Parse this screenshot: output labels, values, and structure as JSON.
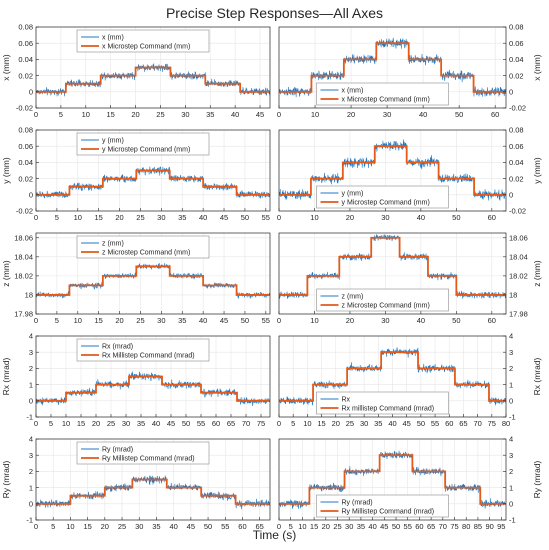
{
  "figure": {
    "title": "Precise Step Responses—All Axes",
    "xlabel": "Time (s)"
  },
  "colors": {
    "measured": "#1f78c1",
    "command": "#e35a1a",
    "grid": "#e6e6e6",
    "axis": "#262626"
  },
  "chart_data": [
    {
      "type": "line",
      "ylabel": "x (mm)",
      "ylabel_side": "left",
      "xlim": [
        0,
        47
      ],
      "ylim": [
        -0.02,
        0.08
      ],
      "xticks": [
        0,
        5,
        10,
        15,
        20,
        25,
        30,
        35,
        40,
        45
      ],
      "yticks": [
        -0.02,
        0,
        0.02,
        0.04,
        0.06,
        0.08
      ],
      "ytick_labels": [
        "-0.02",
        "0",
        "0.02",
        "0.04",
        "0.06",
        "0.08"
      ],
      "legend_position": "top-center",
      "grid": true,
      "noise": 0.004,
      "series": [
        {
          "name": "x (mm)",
          "role": "measured"
        },
        {
          "name": "x Microstep Command (mm)",
          "role": "command",
          "x": [
            0,
            6,
            6,
            13,
            13,
            20,
            20,
            27,
            27,
            34,
            34,
            41,
            41,
            47
          ],
          "y": [
            0,
            0,
            0.01,
            0.01,
            0.02,
            0.02,
            0.03,
            0.03,
            0.02,
            0.02,
            0.01,
            0.01,
            0,
            0
          ]
        }
      ]
    },
    {
      "type": "line",
      "ylabel": "x (mm)",
      "ylabel_side": "right",
      "xlim": [
        0,
        63
      ],
      "ylim": [
        -0.02,
        0.08
      ],
      "xticks": [
        0,
        10,
        20,
        30,
        40,
        50,
        60
      ],
      "yticks": [
        -0.02,
        0,
        0.02,
        0.04,
        0.06,
        0.08
      ],
      "ytick_labels": [
        "-0.02",
        "0",
        "0.02",
        "0.04",
        "0.06",
        "0.08"
      ],
      "legend_position": "bottom-center",
      "grid": true,
      "noise": 0.005,
      "series": [
        {
          "name": "x (mm)",
          "role": "measured"
        },
        {
          "name": "x Microstep Command (mm)",
          "role": "command",
          "x": [
            0,
            9,
            9,
            18,
            18,
            27,
            27,
            36,
            36,
            45,
            45,
            54,
            54,
            63
          ],
          "y": [
            0,
            0,
            0.02,
            0.02,
            0.04,
            0.04,
            0.06,
            0.06,
            0.04,
            0.04,
            0.02,
            0.02,
            0,
            0
          ]
        }
      ]
    },
    {
      "type": "line",
      "ylabel": "y (mm)",
      "ylabel_side": "left",
      "xlim": [
        0,
        56
      ],
      "ylim": [
        -0.02,
        0.08
      ],
      "xticks": [
        0,
        5,
        10,
        15,
        20,
        25,
        30,
        35,
        40,
        45,
        50,
        55
      ],
      "yticks": [
        -0.02,
        0,
        0.02,
        0.04,
        0.06,
        0.08
      ],
      "ytick_labels": [
        "-0.02",
        "0",
        "0.02",
        "0.04",
        "0.06",
        "0.08"
      ],
      "legend_position": "top-center",
      "grid": true,
      "noise": 0.004,
      "series": [
        {
          "name": "y (mm)",
          "role": "measured"
        },
        {
          "name": "y Microstep Command (mm)",
          "role": "command",
          "x": [
            0,
            8,
            8,
            16,
            16,
            24,
            24,
            32,
            32,
            40,
            40,
            48,
            48,
            56
          ],
          "y": [
            0,
            0,
            0.01,
            0.01,
            0.02,
            0.02,
            0.03,
            0.03,
            0.02,
            0.02,
            0.01,
            0.01,
            0,
            0
          ]
        }
      ]
    },
    {
      "type": "line",
      "ylabel": "y (mm)",
      "ylabel_side": "right",
      "xlim": [
        0,
        64
      ],
      "ylim": [
        -0.02,
        0.08
      ],
      "xticks": [
        0,
        10,
        20,
        30,
        40,
        50,
        60
      ],
      "yticks": [
        -0.02,
        0,
        0.02,
        0.04,
        0.06,
        0.08
      ],
      "ytick_labels": [
        "-0.02",
        "0",
        "0.02",
        "0.04",
        "0.06",
        "0.08"
      ],
      "legend_position": "bottom-center",
      "grid": true,
      "noise": 0.005,
      "series": [
        {
          "name": "y (mm)",
          "role": "measured"
        },
        {
          "name": "y Microstep Command (mm)",
          "role": "command",
          "x": [
            0,
            9,
            9,
            18,
            18,
            27,
            27,
            36,
            36,
            45,
            45,
            55,
            55,
            64
          ],
          "y": [
            0,
            0,
            0.02,
            0.02,
            0.04,
            0.04,
            0.06,
            0.06,
            0.04,
            0.04,
            0.02,
            0.02,
            0,
            0
          ]
        }
      ]
    },
    {
      "type": "line",
      "ylabel": "z (mm)",
      "ylabel_side": "left",
      "xlim": [
        0,
        56
      ],
      "ylim": [
        17.98,
        18.065
      ],
      "xticks": [
        0,
        5,
        10,
        15,
        20,
        25,
        30,
        35,
        40,
        45,
        50,
        55
      ],
      "yticks": [
        17.98,
        18,
        18.02,
        18.04,
        18.06
      ],
      "ytick_labels": [
        "17.98",
        "18",
        "18.02",
        "18.04",
        "18.06"
      ],
      "legend_position": "top-center",
      "grid": true,
      "noise": 0.0025,
      "series": [
        {
          "name": "z (mm)",
          "role": "measured"
        },
        {
          "name": "z Microstep Command (mm)",
          "role": "command",
          "x": [
            0,
            8,
            8,
            16,
            16,
            24,
            24,
            32,
            32,
            40,
            40,
            48,
            48,
            56
          ],
          "y": [
            18,
            18,
            18.01,
            18.01,
            18.02,
            18.02,
            18.03,
            18.03,
            18.02,
            18.02,
            18.01,
            18.01,
            18,
            18
          ]
        }
      ]
    },
    {
      "type": "line",
      "ylabel": "z (mm)",
      "ylabel_side": "right",
      "xlim": [
        0,
        64
      ],
      "ylim": [
        17.98,
        18.065
      ],
      "xticks": [
        0,
        10,
        20,
        30,
        40,
        50,
        60
      ],
      "yticks": [
        17.98,
        18,
        18.02,
        18.04,
        18.06
      ],
      "ytick_labels": [
        "17.98",
        "18",
        "18.02",
        "18.04",
        "18.06"
      ],
      "legend_position": "bottom-center",
      "grid": true,
      "noise": 0.003,
      "series": [
        {
          "name": "z (mm)",
          "role": "measured"
        },
        {
          "name": "z Microstep Command (mm)",
          "role": "command",
          "x": [
            0,
            8,
            8,
            17,
            17,
            26,
            26,
            34,
            34,
            42,
            42,
            50,
            50,
            64
          ],
          "y": [
            18,
            18,
            18.02,
            18.02,
            18.04,
            18.04,
            18.06,
            18.06,
            18.04,
            18.04,
            18.02,
            18.02,
            18,
            18
          ]
        }
      ]
    },
    {
      "type": "line",
      "ylabel": "Rx (mrad)",
      "ylabel_side": "left",
      "xlim": [
        0,
        78
      ],
      "ylim": [
        -1,
        4
      ],
      "xticks": [
        0,
        5,
        10,
        15,
        20,
        25,
        30,
        35,
        40,
        45,
        50,
        55,
        60,
        65,
        70,
        75
      ],
      "yticks": [
        -1,
        0,
        1,
        2,
        3,
        4
      ],
      "ytick_labels": [
        "-1",
        "0",
        "1",
        "2",
        "3",
        "4"
      ],
      "legend_position": "top-center",
      "grid": true,
      "noise": 0.2,
      "series": [
        {
          "name": "Rx (mrad)",
          "role": "measured"
        },
        {
          "name": "Rx Millistep Command (mrad)",
          "role": "command",
          "x": [
            0,
            10,
            10,
            20,
            20,
            31,
            31,
            42,
            42,
            55,
            55,
            67,
            67,
            78
          ],
          "y": [
            0,
            0,
            0.5,
            0.5,
            1,
            1,
            1.5,
            1.5,
            1,
            1,
            0.5,
            0.5,
            0,
            0
          ]
        }
      ]
    },
    {
      "type": "line",
      "ylabel": "Rx (mrad)",
      "ylabel_side": "right",
      "xlim": [
        0,
        80
      ],
      "ylim": [
        -1,
        4
      ],
      "xticks": [
        0,
        5,
        10,
        15,
        20,
        25,
        30,
        35,
        40,
        45,
        50,
        55,
        60,
        65,
        70,
        75,
        80
      ],
      "yticks": [
        -1,
        0,
        1,
        2,
        3,
        4
      ],
      "ytick_labels": [
        "-1",
        "0",
        "1",
        "2",
        "3",
        "4"
      ],
      "legend_position": "bottom-center",
      "grid": true,
      "noise": 0.2,
      "series": [
        {
          "name": "Rx",
          "role": "measured"
        },
        {
          "name": "Rx millistep Command (mrad)",
          "role": "command",
          "x": [
            0,
            12,
            12,
            24,
            24,
            36,
            36,
            49,
            49,
            62,
            62,
            74,
            74,
            80
          ],
          "y": [
            0,
            0,
            1,
            1,
            2,
            2,
            3,
            3,
            2,
            2,
            1,
            1,
            0,
            0
          ]
        }
      ]
    },
    {
      "type": "line",
      "ylabel": "Ry (mrad)",
      "ylabel_side": "left",
      "xlim": [
        0,
        68
      ],
      "ylim": [
        -1,
        4
      ],
      "xticks": [
        0,
        5,
        10,
        15,
        20,
        25,
        30,
        35,
        40,
        45,
        50,
        55,
        60,
        65
      ],
      "yticks": [
        -1,
        0,
        1,
        2,
        3,
        4
      ],
      "ytick_labels": [
        "-1",
        "0",
        "1",
        "2",
        "3",
        "4"
      ],
      "legend_position": "top-center",
      "grid": true,
      "noise": 0.2,
      "series": [
        {
          "name": "Ry (mrad)",
          "role": "measured"
        },
        {
          "name": "Ry Millistep Command (mrad)",
          "role": "command",
          "x": [
            0,
            10,
            10,
            20,
            20,
            28,
            28,
            38,
            38,
            48,
            48,
            58,
            58,
            68
          ],
          "y": [
            0,
            0,
            0.5,
            0.5,
            1,
            1,
            1.5,
            1.5,
            1,
            1,
            0.5,
            0.5,
            0,
            0
          ]
        }
      ]
    },
    {
      "type": "line",
      "ylabel": "Ry (mrad)",
      "ylabel_side": "right",
      "xlim": [
        0,
        97
      ],
      "ylim": [
        -1,
        4
      ],
      "xticks": [
        0,
        5,
        10,
        15,
        20,
        25,
        30,
        35,
        40,
        45,
        50,
        55,
        60,
        65,
        70,
        75,
        80,
        85,
        90,
        95
      ],
      "yticks": [
        -1,
        0,
        1,
        2,
        3,
        4
      ],
      "ytick_labels": [
        "-1",
        "0",
        "1",
        "2",
        "3",
        "4"
      ],
      "legend_position": "bottom-center",
      "grid": true,
      "noise": 0.2,
      "series": [
        {
          "name": "Ry (mrad)",
          "role": "measured"
        },
        {
          "name": "Ry Millistep Command (mrad)",
          "role": "command",
          "x": [
            0,
            13,
            13,
            28,
            28,
            43,
            43,
            57,
            57,
            71,
            71,
            86,
            86,
            97
          ],
          "y": [
            0,
            0,
            1,
            1,
            2,
            2,
            3,
            3,
            2,
            2,
            1,
            1,
            0,
            0
          ]
        }
      ]
    }
  ]
}
